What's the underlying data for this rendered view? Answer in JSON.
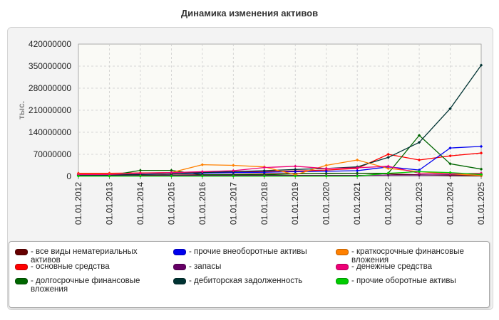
{
  "chart_data": {
    "type": "line",
    "title": "Динамика изменения активов",
    "ylabel": "тыс.",
    "xlabel": "",
    "ylim": [
      0,
      420000000
    ],
    "yticks": [
      "0",
      "70000000",
      "140000000",
      "210000000",
      "280000000",
      "350000000",
      "420000000"
    ],
    "categories": [
      "01.01.2012",
      "01.01.2013",
      "01.01.2014",
      "01.01.2015",
      "01.01.2016",
      "01.01.2017",
      "01.01.2018",
      "01.01.2019",
      "01.01.2020",
      "01.01.2021",
      "01.01.2022",
      "01.01.2023",
      "01.01.2024",
      "01.01.2025"
    ],
    "grid": true,
    "legend_position": "bottom",
    "series": [
      {
        "name": "все виды нематериальных активов",
        "color": "#660000",
        "values": [
          2000000,
          2000000,
          3000000,
          4000000,
          5000000,
          6000000,
          8000000,
          9000000,
          9000000,
          10000000,
          8000000,
          5000000,
          3000000,
          2000000
        ]
      },
      {
        "name": "основные средства",
        "color": "#ff0000",
        "values": [
          10000000,
          10000000,
          11000000,
          12000000,
          13000000,
          14000000,
          15000000,
          17000000,
          20000000,
          25000000,
          70000000,
          52000000,
          65000000,
          74000000
        ]
      },
      {
        "name": "долгосрочные финансовые вложения",
        "color": "#006600",
        "values": [
          3000000,
          3000000,
          19000000,
          19000000,
          5000000,
          5000000,
          5000000,
          8000000,
          10000000,
          10000000,
          10000000,
          130000000,
          40000000,
          23000000
        ]
      },
      {
        "name": "прочие внеоборотные активы",
        "color": "#0000ee",
        "values": [
          5000000,
          5000000,
          6000000,
          8000000,
          10000000,
          12000000,
          13000000,
          15000000,
          16000000,
          18000000,
          30000000,
          20000000,
          90000000,
          95000000
        ]
      },
      {
        "name": "запасы",
        "color": "#660066",
        "values": [
          2000000,
          2000000,
          2000000,
          3000000,
          3000000,
          3000000,
          3000000,
          3000000,
          3000000,
          3000000,
          4000000,
          4000000,
          5000000,
          5000000
        ]
      },
      {
        "name": "дебиторская задолженность",
        "color": "#003333",
        "values": [
          4000000,
          4000000,
          6000000,
          8000000,
          12000000,
          15000000,
          18000000,
          22000000,
          25000000,
          30000000,
          60000000,
          108000000,
          215000000,
          353000000
        ]
      },
      {
        "name": "краткосрочные финансовые вложения",
        "color": "#ff8000",
        "values": [
          8000000,
          8000000,
          10000000,
          12000000,
          37000000,
          35000000,
          30000000,
          5000000,
          35000000,
          52000000,
          25000000,
          15000000,
          8000000,
          3000000
        ]
      },
      {
        "name": "денежные средства",
        "color": "#ee0077",
        "values": [
          6000000,
          6000000,
          10000000,
          12000000,
          15000000,
          18000000,
          28000000,
          32000000,
          25000000,
          27000000,
          32000000,
          10000000,
          8000000,
          10000000
        ]
      },
      {
        "name": "прочие оборотные активы",
        "color": "#00cc00",
        "values": [
          1000000,
          1000000,
          1000000,
          1000000,
          1000000,
          1000000,
          1000000,
          1000000,
          1000000,
          1000000,
          10000000,
          15000000,
          12000000,
          6000000
        ]
      }
    ]
  },
  "legend_layout": [
    {
      "series": 0,
      "col": 0,
      "row": 0
    },
    {
      "series": 1,
      "col": 0,
      "row": 1
    },
    {
      "series": 2,
      "col": 0,
      "row": 2
    },
    {
      "series": 3,
      "col": 1,
      "row": 0
    },
    {
      "series": 4,
      "col": 1,
      "row": 1
    },
    {
      "series": 5,
      "col": 1,
      "row": 2
    },
    {
      "series": 6,
      "col": 2,
      "row": 0
    },
    {
      "series": 7,
      "col": 2,
      "row": 1
    },
    {
      "series": 8,
      "col": 2,
      "row": 2
    }
  ]
}
